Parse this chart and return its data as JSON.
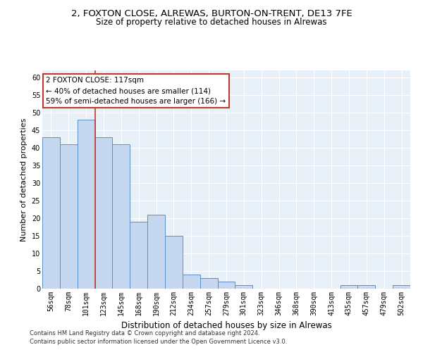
{
  "title_line1": "2, FOXTON CLOSE, ALREWAS, BURTON-ON-TRENT, DE13 7FE",
  "title_line2": "Size of property relative to detached houses in Alrewas",
  "xlabel": "Distribution of detached houses by size in Alrewas",
  "ylabel": "Number of detached properties",
  "categories": [
    "56sqm",
    "78sqm",
    "101sqm",
    "123sqm",
    "145sqm",
    "168sqm",
    "190sqm",
    "212sqm",
    "234sqm",
    "257sqm",
    "279sqm",
    "301sqm",
    "323sqm",
    "346sqm",
    "368sqm",
    "390sqm",
    "413sqm",
    "435sqm",
    "457sqm",
    "479sqm",
    "502sqm"
  ],
  "values": [
    43,
    41,
    48,
    43,
    41,
    19,
    21,
    15,
    4,
    3,
    2,
    1,
    0,
    0,
    0,
    0,
    0,
    1,
    1,
    0,
    1
  ],
  "bar_color": "#c5d8f0",
  "bar_edge_color": "#5b8fc9",
  "vline_x": 2.5,
  "vline_color": "#c0392b",
  "annotation_text": "2 FOXTON CLOSE: 117sqm\n← 40% of detached houses are smaller (114)\n59% of semi-detached houses are larger (166) →",
  "annotation_box_color": "#ffffff",
  "annotation_box_edge": "#c0392b",
  "ylim": [
    0,
    62
  ],
  "yticks": [
    0,
    5,
    10,
    15,
    20,
    25,
    30,
    35,
    40,
    45,
    50,
    55,
    60
  ],
  "footer1": "Contains HM Land Registry data © Crown copyright and database right 2024.",
  "footer2": "Contains public sector information licensed under the Open Government Licence v3.0.",
  "bg_color": "#e8f0f8",
  "grid_color": "#ffffff",
  "title_fontsize": 9.5,
  "subtitle_fontsize": 8.5,
  "tick_fontsize": 7,
  "ylabel_fontsize": 8,
  "xlabel_fontsize": 8.5,
  "footer_fontsize": 6,
  "annotation_fontsize": 7.5
}
